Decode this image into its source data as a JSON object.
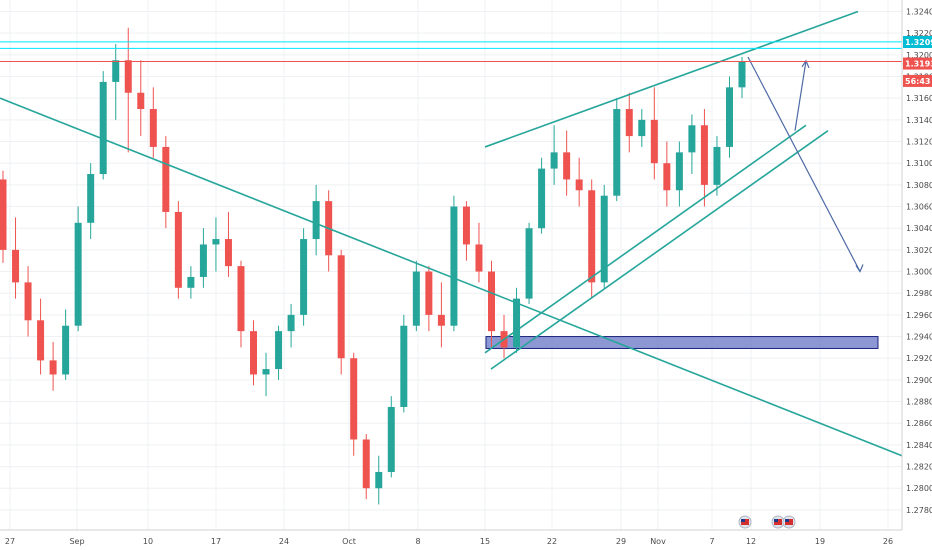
{
  "chart_data": {
    "type": "candlestick",
    "title": "",
    "xlabel": "",
    "ylabel": "",
    "ylim": [
      1.2765,
      1.325
    ],
    "grid": true,
    "y_ticks": [
      "1.32400",
      "1.32200",
      "1.32000",
      "1.31800",
      "1.31600",
      "1.31400",
      "1.31200",
      "1.31000",
      "1.30800",
      "1.30600",
      "1.30400",
      "1.30200",
      "1.30000",
      "1.29800",
      "1.29600",
      "1.29400",
      "1.29200",
      "1.29000",
      "1.28800",
      "1.28600",
      "1.28400",
      "1.28200",
      "1.28000",
      "1.27800"
    ],
    "x_ticks": [
      "27",
      "Sep",
      "10",
      "17",
      "24",
      "Oct",
      "8",
      "15",
      "22",
      "29",
      "Nov",
      "7",
      "12",
      "19",
      "26"
    ],
    "price_labels": [
      {
        "text": "1.32091",
        "value": 1.32091,
        "color": "#00bcd4"
      },
      {
        "text": "1.31938",
        "value": 1.31938,
        "color": "#ef5350"
      },
      {
        "text": "56:43",
        "value": 1.3187,
        "color": "#ef5350"
      }
    ],
    "horizontal_lines": [
      {
        "value": 1.3212,
        "color": "#00e5ff"
      },
      {
        "value": 1.3206,
        "color": "#00e5ff"
      },
      {
        "value": 1.31938,
        "color": "#ef5350"
      }
    ],
    "rectangle": {
      "x_start": "15",
      "x_end": "26",
      "y_low": 1.2929,
      "y_high": 1.294,
      "color": "#5c6bc0"
    },
    "trendlines": [
      {
        "from": [
          "27",
          1.316
        ],
        "to": [
          "26",
          1.283
        ],
        "color": "#26a69a"
      },
      {
        "from": [
          "15",
          1.3115
        ],
        "to": [
          "19",
          1.324
        ],
        "color": "#26a69a"
      },
      {
        "from": [
          "15",
          1.2925
        ],
        "to": [
          "12",
          1.3135
        ],
        "color": "#26a69a"
      },
      {
        "from": [
          "15",
          1.291
        ],
        "to": [
          "19",
          1.313
        ],
        "color": "#26a69a"
      }
    ],
    "projection_arrows": [
      {
        "from": [
          "12",
          1.3198
        ],
        "to": [
          "19",
          1.3
        ],
        "color": "#4e6aa5"
      },
      {
        "from": [
          "19",
          1.313
        ],
        "to": [
          "19",
          1.32
        ],
        "color": "#4e6aa5"
      }
    ],
    "event_icons": 3,
    "series": [
      {
        "x": "24 Aug",
        "o": 1.3085,
        "h": 1.3093,
        "l": 1.3008,
        "c": 1.302
      },
      {
        "x": "27 Aug",
        "o": 1.302,
        "h": 1.305,
        "l": 1.2975,
        "c": 1.299
      },
      {
        "x": "28 Aug",
        "o": 1.299,
        "h": 1.3005,
        "l": 1.294,
        "c": 1.2955
      },
      {
        "x": "29 Aug",
        "o": 1.2955,
        "h": 1.2975,
        "l": 1.2905,
        "c": 1.2918
      },
      {
        "x": "30 Aug",
        "o": 1.2918,
        "h": 1.2935,
        "l": 1.289,
        "c": 1.2905
      },
      {
        "x": "31 Aug",
        "o": 1.2905,
        "h": 1.2965,
        "l": 1.29,
        "c": 1.295
      },
      {
        "x": "3 Sep",
        "o": 1.295,
        "h": 1.306,
        "l": 1.2945,
        "c": 1.3045
      },
      {
        "x": "4 Sep",
        "o": 1.3045,
        "h": 1.31,
        "l": 1.303,
        "c": 1.309
      },
      {
        "x": "5 Sep",
        "o": 1.309,
        "h": 1.3185,
        "l": 1.3085,
        "c": 1.3175
      },
      {
        "x": "6 Sep",
        "o": 1.3175,
        "h": 1.321,
        "l": 1.314,
        "c": 1.3195
      },
      {
        "x": "7 Sep",
        "o": 1.3195,
        "h": 1.3225,
        "l": 1.311,
        "c": 1.3165
      },
      {
        "x": "10 Sep",
        "o": 1.3165,
        "h": 1.3195,
        "l": 1.3125,
        "c": 1.315
      },
      {
        "x": "11 Sep",
        "o": 1.315,
        "h": 1.317,
        "l": 1.3105,
        "c": 1.3115
      },
      {
        "x": "12 Sep",
        "o": 1.3115,
        "h": 1.3125,
        "l": 1.304,
        "c": 1.3055
      },
      {
        "x": "13 Sep",
        "o": 1.3055,
        "h": 1.3065,
        "l": 1.2975,
        "c": 1.2985
      },
      {
        "x": "14 Sep",
        "o": 1.2985,
        "h": 1.3005,
        "l": 1.2975,
        "c": 1.2995
      },
      {
        "x": "17 Sep",
        "o": 1.2995,
        "h": 1.304,
        "l": 1.2985,
        "c": 1.3025
      },
      {
        "x": "18 Sep",
        "o": 1.3025,
        "h": 1.305,
        "l": 1.3,
        "c": 1.303
      },
      {
        "x": "19 Sep",
        "o": 1.303,
        "h": 1.3055,
        "l": 1.2995,
        "c": 1.3005
      },
      {
        "x": "20 Sep",
        "o": 1.3005,
        "h": 1.301,
        "l": 1.293,
        "c": 1.2945
      },
      {
        "x": "21 Sep",
        "o": 1.2945,
        "h": 1.2955,
        "l": 1.2895,
        "c": 1.2905
      },
      {
        "x": "24 Sep",
        "o": 1.2905,
        "h": 1.2925,
        "l": 1.2885,
        "c": 1.291
      },
      {
        "x": "25 Sep",
        "o": 1.291,
        "h": 1.295,
        "l": 1.29,
        "c": 1.2945
      },
      {
        "x": "26 Sep",
        "o": 1.2945,
        "h": 1.297,
        "l": 1.293,
        "c": 1.296
      },
      {
        "x": "27 Sep",
        "o": 1.296,
        "h": 1.304,
        "l": 1.295,
        "c": 1.303
      },
      {
        "x": "28 Sep",
        "o": 1.303,
        "h": 1.308,
        "l": 1.3015,
        "c": 1.3065
      },
      {
        "x": "1 Oct",
        "o": 1.3065,
        "h": 1.3075,
        "l": 1.3,
        "c": 1.3015
      },
      {
        "x": "2 Oct",
        "o": 1.3015,
        "h": 1.302,
        "l": 1.2905,
        "c": 1.292
      },
      {
        "x": "3 Oct",
        "o": 1.292,
        "h": 1.2925,
        "l": 1.283,
        "c": 1.2845
      },
      {
        "x": "4 Oct",
        "o": 1.2845,
        "h": 1.285,
        "l": 1.279,
        "c": 1.28
      },
      {
        "x": "5 Oct",
        "o": 1.28,
        "h": 1.283,
        "l": 1.2785,
        "c": 1.2815
      },
      {
        "x": "8 Oct",
        "o": 1.2815,
        "h": 1.2885,
        "l": 1.281,
        "c": 1.2875
      },
      {
        "x": "9 Oct",
        "o": 1.2875,
        "h": 1.296,
        "l": 1.287,
        "c": 1.295
      },
      {
        "x": "10 Oct",
        "o": 1.295,
        "h": 1.301,
        "l": 1.2945,
        "c": 1.3
      },
      {
        "x": "11 Oct",
        "o": 1.3,
        "h": 1.3005,
        "l": 1.2945,
        "c": 1.296
      },
      {
        "x": "12 Oct",
        "o": 1.296,
        "h": 1.299,
        "l": 1.293,
        "c": 1.295
      },
      {
        "x": "15 Oct",
        "o": 1.295,
        "h": 1.307,
        "l": 1.2945,
        "c": 1.306
      },
      {
        "x": "16 Oct",
        "o": 1.306,
        "h": 1.3065,
        "l": 1.301,
        "c": 1.3025
      },
      {
        "x": "17 Oct",
        "o": 1.3025,
        "h": 1.3045,
        "l": 1.299,
        "c": 1.3
      },
      {
        "x": "18 Oct",
        "o": 1.3,
        "h": 1.301,
        "l": 1.293,
        "c": 1.2945
      },
      {
        "x": "19 Oct",
        "o": 1.2945,
        "h": 1.296,
        "l": 1.292,
        "c": 1.293
      },
      {
        "x": "22 Oct",
        "o": 1.293,
        "h": 1.2985,
        "l": 1.2925,
        "c": 1.2975
      },
      {
        "x": "23 Oct",
        "o": 1.2975,
        "h": 1.3045,
        "l": 1.297,
        "c": 1.304
      },
      {
        "x": "24 Oct",
        "o": 1.304,
        "h": 1.3105,
        "l": 1.3035,
        "c": 1.3095
      },
      {
        "x": "25 Oct",
        "o": 1.3095,
        "h": 1.3135,
        "l": 1.308,
        "c": 1.311
      },
      {
        "x": "26 Oct",
        "o": 1.311,
        "h": 1.313,
        "l": 1.307,
        "c": 1.3085
      },
      {
        "x": "29 Oct",
        "o": 1.3085,
        "h": 1.3105,
        "l": 1.306,
        "c": 1.3075
      },
      {
        "x": "30 Oct",
        "o": 1.3075,
        "h": 1.3085,
        "l": 1.2975,
        "c": 1.299
      },
      {
        "x": "31 Oct",
        "o": 1.299,
        "h": 1.308,
        "l": 1.2985,
        "c": 1.307
      },
      {
        "x": "1 Nov",
        "o": 1.307,
        "h": 1.316,
        "l": 1.3065,
        "c": 1.315
      },
      {
        "x": "2 Nov",
        "o": 1.315,
        "h": 1.3165,
        "l": 1.311,
        "c": 1.3125
      },
      {
        "x": "5 Nov",
        "o": 1.3125,
        "h": 1.315,
        "l": 1.3115,
        "c": 1.314
      },
      {
        "x": "6 Nov",
        "o": 1.314,
        "h": 1.317,
        "l": 1.3085,
        "c": 1.31
      },
      {
        "x": "7 Nov",
        "o": 1.31,
        "h": 1.312,
        "l": 1.306,
        "c": 1.3075
      },
      {
        "x": "8 Nov",
        "o": 1.3075,
        "h": 1.312,
        "l": 1.306,
        "c": 1.311
      },
      {
        "x": "9 Nov",
        "o": 1.311,
        "h": 1.3145,
        "l": 1.309,
        "c": 1.3135
      },
      {
        "x": "12 Nov",
        "o": 1.3135,
        "h": 1.315,
        "l": 1.306,
        "c": 1.308
      },
      {
        "x": "13 Nov",
        "o": 1.308,
        "h": 1.3125,
        "l": 1.307,
        "c": 1.3115
      },
      {
        "x": "14 Nov",
        "o": 1.3115,
        "h": 1.318,
        "l": 1.3105,
        "c": 1.317
      },
      {
        "x": "15 Nov",
        "o": 1.317,
        "h": 1.3198,
        "l": 1.316,
        "c": 1.3194
      }
    ]
  }
}
